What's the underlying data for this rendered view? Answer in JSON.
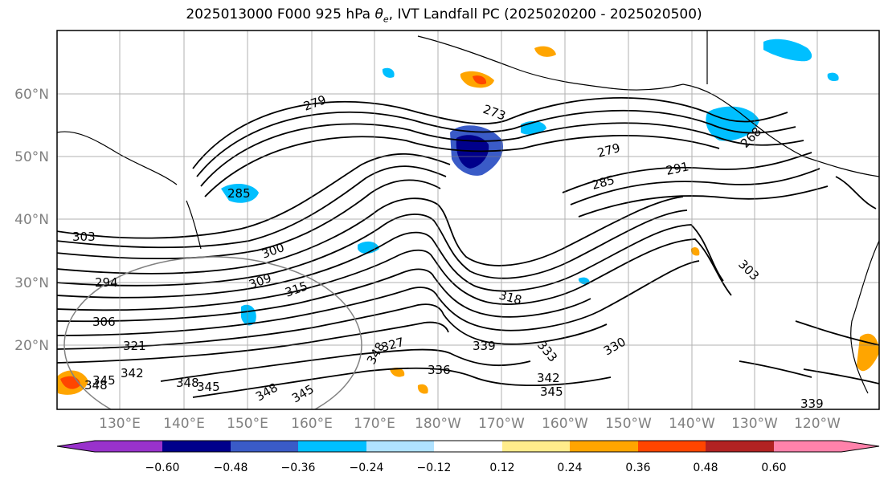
{
  "title": {
    "prefix": "2025013000 F000 925 hPa ",
    "theta": "θ",
    "theta_sub": "e",
    "suffix": ", IVT Landfall PC (2025020200 - 2025020500)"
  },
  "axes": {
    "lat_labels": [
      "60°N",
      "50°N",
      "40°N",
      "30°N",
      "20°N"
    ],
    "lon_labels": [
      "130°E",
      "140°E",
      "150°E",
      "160°E",
      "170°E",
      "180°W",
      "170°W",
      "160°W",
      "150°W",
      "140°W",
      "130°W",
      "120°W"
    ]
  },
  "contour_labels": [
    "279",
    "273",
    "279",
    "285",
    "291",
    "268",
    "285",
    "300",
    "309",
    "294",
    "306",
    "321",
    "315",
    "318",
    "303",
    "339",
    "327",
    "336",
    "333",
    "330",
    "342",
    "345",
    "348",
    "348",
    "345",
    "348",
    "345",
    "342",
    "345",
    "303",
    "339",
    "348"
  ],
  "colorbar": {
    "colors": [
      "#9932cc",
      "#00008b",
      "#3a5bc7",
      "#00bfff",
      "#b0e2ff",
      "#ffffff",
      "#ffec8b",
      "#ffa500",
      "#ff4500",
      "#b22222",
      "#ff82ab"
    ],
    "tick_labels": [
      "−0.60",
      "−0.48",
      "−0.36",
      "−0.24",
      "−0.12",
      "0.12",
      "0.24",
      "0.36",
      "0.48",
      "0.60"
    ]
  }
}
